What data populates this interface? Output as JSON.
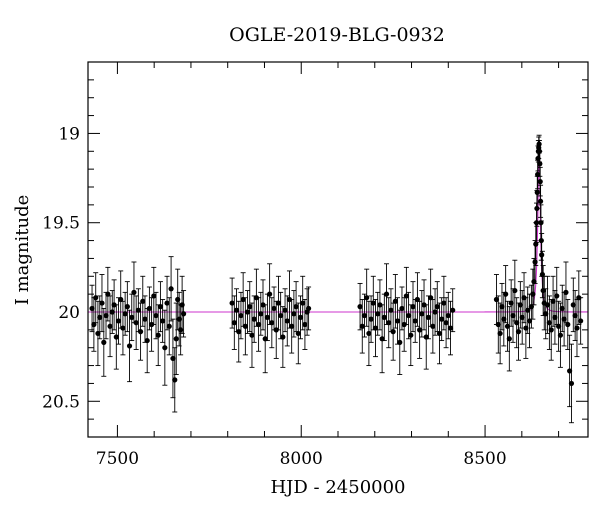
{
  "chart_data": {
    "type": "scatter",
    "title": "OGLE-2019-BLG-0932",
    "xlabel": "HJD - 2450000",
    "ylabel": "I magnitude",
    "xlim": [
      7420,
      8780
    ],
    "ylim": [
      20.7,
      18.6
    ],
    "y_inverted": true,
    "xticks": [
      7500,
      8000,
      8500
    ],
    "xtick_labels": [
      "7500",
      "8000",
      "8500"
    ],
    "yticks": [
      19,
      19.5,
      20,
      20.5
    ],
    "ytick_labels": [
      "19",
      "19.5",
      "20",
      "20.5"
    ],
    "baseline_mag": 20.0,
    "model_peak": {
      "t0": 8647,
      "mag": 19.05,
      "width_days": 5
    },
    "colors": {
      "points": "#000000",
      "model": "#cc33cc"
    },
    "grid": false,
    "legend": "none",
    "series": [
      {
        "points": [
          [
            7431,
            19.98,
            0.13
          ],
          [
            7436,
            20.07,
            0.15
          ],
          [
            7441,
            19.92,
            0.14
          ],
          [
            7447,
            20.12,
            0.18
          ],
          [
            7452,
            20.03,
            0.12
          ],
          [
            7458,
            19.95,
            0.16
          ],
          [
            7463,
            20.17,
            0.19
          ],
          [
            7469,
            20.02,
            0.13
          ],
          [
            7474,
            19.9,
            0.15
          ],
          [
            7480,
            20.08,
            0.17
          ],
          [
            7486,
            20.0,
            0.12
          ],
          [
            7491,
            19.96,
            0.14
          ],
          [
            7497,
            20.14,
            0.18
          ],
          [
            7503,
            20.05,
            0.13
          ],
          [
            7509,
            19.93,
            0.16
          ],
          [
            7515,
            20.09,
            0.15
          ],
          [
            7521,
            20.01,
            0.12
          ],
          [
            7527,
            19.97,
            0.14
          ],
          [
            7533,
            20.19,
            0.2
          ],
          [
            7539,
            20.03,
            0.13
          ],
          [
            7545,
            19.89,
            0.17
          ],
          [
            7551,
            20.06,
            0.15
          ],
          [
            7557,
            19.99,
            0.12
          ],
          [
            7563,
            20.11,
            0.16
          ],
          [
            7569,
            19.94,
            0.14
          ],
          [
            7575,
            20.04,
            0.13
          ],
          [
            7581,
            20.16,
            0.18
          ],
          [
            7587,
            19.98,
            0.12
          ],
          [
            7593,
            20.07,
            0.15
          ],
          [
            7599,
            19.91,
            0.16
          ],
          [
            7605,
            20.02,
            0.13
          ],
          [
            7611,
            20.13,
            0.17
          ],
          [
            7617,
            19.97,
            0.14
          ],
          [
            7623,
            20.05,
            0.12
          ],
          [
            7629,
            20.2,
            0.21
          ],
          [
            7635,
            19.95,
            0.15
          ],
          [
            7641,
            20.08,
            0.16
          ],
          [
            7646,
            19.87,
            0.18
          ],
          [
            7651,
            20.26,
            0.22
          ],
          [
            7656,
            20.38,
            0.18
          ],
          [
            7660,
            20.15,
            0.2
          ],
          [
            7664,
            19.93,
            0.17
          ],
          [
            7668,
            20.04,
            0.15
          ],
          [
            7672,
            20.1,
            0.14
          ],
          [
            7676,
            19.96,
            0.16
          ],
          [
            7680,
            20.01,
            0.13
          ],
          [
            7812,
            19.95,
            0.14
          ],
          [
            7818,
            20.06,
            0.15
          ],
          [
            7824,
            19.99,
            0.12
          ],
          [
            7830,
            20.11,
            0.17
          ],
          [
            7836,
            20.02,
            0.13
          ],
          [
            7842,
            19.93,
            0.15
          ],
          [
            7848,
            20.08,
            0.16
          ],
          [
            7854,
            20.0,
            0.12
          ],
          [
            7860,
            19.97,
            0.14
          ],
          [
            7866,
            20.13,
            0.18
          ],
          [
            7872,
            20.04,
            0.13
          ],
          [
            7878,
            19.92,
            0.16
          ],
          [
            7884,
            20.07,
            0.15
          ],
          [
            7890,
            20.01,
            0.12
          ],
          [
            7896,
            19.96,
            0.14
          ],
          [
            7902,
            20.15,
            0.19
          ],
          [
            7908,
            20.03,
            0.13
          ],
          [
            7914,
            19.9,
            0.17
          ],
          [
            7920,
            20.06,
            0.14
          ],
          [
            7926,
            19.98,
            0.12
          ],
          [
            7932,
            20.1,
            0.16
          ],
          [
            7938,
            19.95,
            0.15
          ],
          [
            7944,
            20.02,
            0.13
          ],
          [
            7950,
            20.14,
            0.17
          ],
          [
            7956,
            19.99,
            0.12
          ],
          [
            7962,
            20.05,
            0.14
          ],
          [
            7968,
            19.93,
            0.16
          ],
          [
            7974,
            20.08,
            0.15
          ],
          [
            7980,
            20.01,
            0.13
          ],
          [
            7986,
            19.97,
            0.14
          ],
          [
            7992,
            20.12,
            0.17
          ],
          [
            7998,
            20.03,
            0.12
          ],
          [
            8004,
            19.95,
            0.15
          ],
          [
            8010,
            20.07,
            0.14
          ],
          [
            8016,
            20.0,
            0.13
          ],
          [
            8020,
            19.98,
            0.12
          ],
          [
            8160,
            19.97,
            0.13
          ],
          [
            8166,
            20.08,
            0.15
          ],
          [
            8172,
            20.02,
            0.12
          ],
          [
            8178,
            19.92,
            0.16
          ],
          [
            8184,
            20.12,
            0.18
          ],
          [
            8190,
            20.04,
            0.13
          ],
          [
            8196,
            19.95,
            0.15
          ],
          [
            8202,
            20.09,
            0.16
          ],
          [
            8208,
            20.01,
            0.12
          ],
          [
            8214,
            19.96,
            0.14
          ],
          [
            8220,
            20.15,
            0.19
          ],
          [
            8226,
            20.03,
            0.13
          ],
          [
            8232,
            19.9,
            0.17
          ],
          [
            8238,
            20.06,
            0.14
          ],
          [
            8244,
            19.99,
            0.12
          ],
          [
            8250,
            20.11,
            0.16
          ],
          [
            8256,
            19.94,
            0.15
          ],
          [
            8262,
            20.05,
            0.13
          ],
          [
            8268,
            20.17,
            0.18
          ],
          [
            8274,
            19.98,
            0.12
          ],
          [
            8280,
            20.07,
            0.15
          ],
          [
            8286,
            19.91,
            0.16
          ],
          [
            8292,
            20.02,
            0.13
          ],
          [
            8298,
            20.13,
            0.17
          ],
          [
            8304,
            19.97,
            0.14
          ],
          [
            8310,
            20.05,
            0.12
          ],
          [
            8316,
            19.93,
            0.15
          ],
          [
            8322,
            20.1,
            0.16
          ],
          [
            8328,
            20.01,
            0.13
          ],
          [
            8334,
            19.96,
            0.14
          ],
          [
            8340,
            20.14,
            0.18
          ],
          [
            8346,
            20.03,
            0.12
          ],
          [
            8352,
            19.92,
            0.16
          ],
          [
            8358,
            20.08,
            0.15
          ],
          [
            8364,
            20.0,
            0.13
          ],
          [
            8370,
            19.97,
            0.14
          ],
          [
            8376,
            20.12,
            0.17
          ],
          [
            8382,
            20.04,
            0.12
          ],
          [
            8388,
            19.95,
            0.15
          ],
          [
            8394,
            20.06,
            0.14
          ],
          [
            8400,
            20.02,
            0.13
          ],
          [
            8406,
            20.09,
            0.15
          ],
          [
            8412,
            19.99,
            0.12
          ],
          [
            8531,
            19.93,
            0.14
          ],
          [
            8536,
            20.07,
            0.16
          ],
          [
            8541,
            20.12,
            0.17
          ],
          [
            8546,
            19.97,
            0.13
          ],
          [
            8551,
            20.04,
            0.15
          ],
          [
            8556,
            19.9,
            0.16
          ],
          [
            8561,
            20.08,
            0.14
          ],
          [
            8566,
            20.15,
            0.18
          ],
          [
            8571,
            19.95,
            0.13
          ],
          [
            8576,
            20.02,
            0.15
          ],
          [
            8581,
            19.88,
            0.17
          ],
          [
            8586,
            20.06,
            0.14
          ],
          [
            8591,
            20.11,
            0.16
          ],
          [
            8596,
            19.96,
            0.13
          ],
          [
            8601,
            20.03,
            0.15
          ],
          [
            8606,
            19.92,
            0.14
          ],
          [
            8611,
            20.09,
            0.17
          ],
          [
            8616,
            19.99,
            0.13
          ],
          [
            8621,
            20.05,
            0.15
          ],
          [
            8626,
            19.97,
            0.12
          ],
          [
            8630,
            19.9,
            0.14
          ],
          [
            8633,
            19.83,
            0.13
          ],
          [
            8636,
            19.72,
            0.12
          ],
          [
            8638,
            19.62,
            0.12
          ],
          [
            8640,
            19.5,
            0.11
          ],
          [
            8641,
            19.42,
            0.1
          ],
          [
            8642,
            19.33,
            0.09
          ],
          [
            8643,
            19.23,
            0.08
          ],
          [
            8644,
            19.14,
            0.07
          ],
          [
            8645,
            19.1,
            0.06
          ],
          [
            8646,
            19.08,
            0.06
          ],
          [
            8647,
            19.06,
            0.05
          ],
          [
            8648,
            19.1,
            0.06
          ],
          [
            8649,
            19.17,
            0.07
          ],
          [
            8650,
            19.27,
            0.08
          ],
          [
            8651,
            19.38,
            0.09
          ],
          [
            8652,
            19.5,
            0.1
          ],
          [
            8653,
            19.6,
            0.11
          ],
          [
            8654,
            19.68,
            0.12
          ],
          [
            8656,
            19.79,
            0.13
          ],
          [
            8658,
            19.88,
            0.14
          ],
          [
            8661,
            19.95,
            0.15
          ],
          [
            8665,
            20.01,
            0.14
          ],
          [
            8670,
            19.96,
            0.16
          ],
          [
            8675,
            20.06,
            0.15
          ],
          [
            8680,
            20.1,
            0.17
          ],
          [
            8685,
            19.94,
            0.14
          ],
          [
            8690,
            20.03,
            0.15
          ],
          [
            8695,
            19.91,
            0.16
          ],
          [
            8700,
            20.08,
            0.14
          ],
          [
            8705,
            20.13,
            0.18
          ],
          [
            8710,
            19.98,
            0.13
          ],
          [
            8715,
            20.04,
            0.15
          ],
          [
            8720,
            19.89,
            0.17
          ],
          [
            8725,
            20.07,
            0.14
          ],
          [
            8730,
            20.33,
            0.2
          ],
          [
            8735,
            20.4,
            0.22
          ],
          [
            8740,
            19.96,
            0.15
          ],
          [
            8745,
            20.02,
            0.14
          ],
          [
            8750,
            20.09,
            0.16
          ],
          [
            8755,
            19.92,
            0.15
          ],
          [
            8760,
            20.05,
            0.13
          ]
        ]
      }
    ]
  }
}
